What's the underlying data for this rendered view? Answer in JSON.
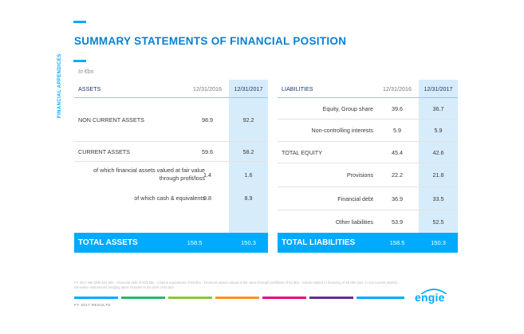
{
  "page": {
    "title": "SUMMARY STATEMENTS OF FINANCIAL POSITION",
    "side_label": "FINANCIAL APPENDICES",
    "unit": "In €bn",
    "footnote": "FY 2017 Net Debt €22.5bn - Financial debt of €33.5bn - Cash & equivalents of €8.9bn - Financial assets valued at fair value through profit/loss of €1.6bn - Assets related to financing of €0.0bn (incl. in non-current assets) - Derivative instruments hedging items included in the debt of €0.5bn",
    "footer_label": "FY 2017 RESULTS",
    "logo_text": "engie"
  },
  "assets": {
    "header": {
      "label": "ASSETS",
      "col1": "12/31/2016",
      "col2": "12/31/2017"
    },
    "rows": [
      {
        "label": "NON CURRENT ASSETS",
        "v2016": "98.9",
        "v2017": "92.2"
      },
      {
        "label": "CURRENT ASSETS",
        "v2016": "59.6",
        "v2017": "58.2"
      },
      {
        "label": "of which financial assets valued at fair value through profit/loss",
        "v2016": "1.4",
        "v2017": "1.6"
      },
      {
        "label": "of which cash & equivalents",
        "v2016": "9.8",
        "v2017": "8.9"
      }
    ],
    "total": {
      "label": "TOTAL ASSETS",
      "v2016": "158.5",
      "v2017": "150.3"
    }
  },
  "liabilities": {
    "header": {
      "label": "LIABILITIES",
      "col1": "12/31/2016",
      "col2": "12/31/2017"
    },
    "rows": [
      {
        "label": "Equity, Group share",
        "v2016": "39.6",
        "v2017": "36.7"
      },
      {
        "label": "Non-controlling interests",
        "v2016": "5.9",
        "v2017": "5.9"
      },
      {
        "label": "TOTAL EQUITY",
        "v2016": "45.4",
        "v2017": "42.6"
      },
      {
        "label": "Provisions",
        "v2016": "22.2",
        "v2017": "21.8"
      },
      {
        "label": "Financial debt",
        "v2016": "36.9",
        "v2017": "33.5"
      },
      {
        "label": "Other liabilities",
        "v2016": "53.9",
        "v2017": "52.5"
      }
    ],
    "total": {
      "label": "TOTAL LIABILITIES",
      "v2016": "158.5",
      "v2017": "150.3"
    }
  },
  "colors": {
    "accent": "#00aaff",
    "title": "#0a7fd0",
    "highlight_column": "#d7ecfa",
    "footer_stripes": [
      "#00aaff",
      "#2bb673",
      "#8dc63f",
      "#f7941d",
      "#e6007e",
      "#662d91",
      "#00aaff"
    ]
  }
}
